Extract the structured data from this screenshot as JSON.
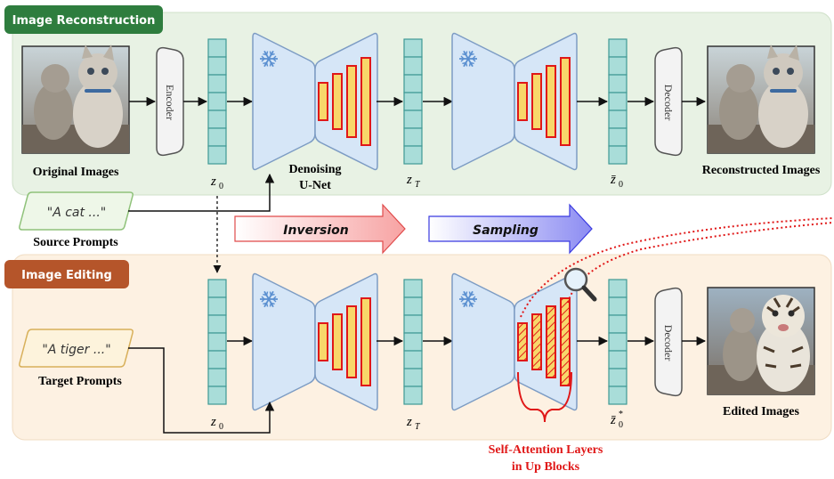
{
  "sections": {
    "reconstruction": "Image Reconstruction",
    "editing": "Image Editing"
  },
  "labels": {
    "encoder": "Encoder",
    "decoder": "Decoder",
    "original_images": "Original Images",
    "reconstructed_images": "Reconstructed Images",
    "edited_images": "Edited Images",
    "denoising_line1": "Denoising",
    "denoising_line2": "U-Net",
    "source_prompts": "Source Prompts",
    "target_prompts": "Target Prompts",
    "source_prompt_text": "\"A cat ...\"",
    "target_prompt_text": "\"A tiger ...\"",
    "inversion": "Inversion",
    "sampling": "Sampling",
    "self_attention_line1": "Self-Attention Layers",
    "self_attention_line2": "in Up Blocks"
  },
  "latents": {
    "z0": "z",
    "z0_sub": "0",
    "zT": "z",
    "zT_sub": "T",
    "z0_bar": "z̄",
    "z0_bar_sub": "0",
    "z0_bar_star_sup": "*"
  },
  "colors": {
    "recon_bg": "#e8f2e4",
    "edit_bg": "#fdf1e2",
    "recon_tag": "#2e7d3e",
    "edit_tag": "#b5552a",
    "unet_fill": "#d6e6f7",
    "unet_stroke": "#7d9cc4",
    "latent_fill": "#a9ddd9",
    "latent_stroke": "#3f9a94",
    "bar_fill": "#f8d76a",
    "bar_stroke": "#e01818",
    "highlight_red": "#e01818"
  },
  "icons": [
    "snowflake-icon",
    "magnifier-icon"
  ]
}
